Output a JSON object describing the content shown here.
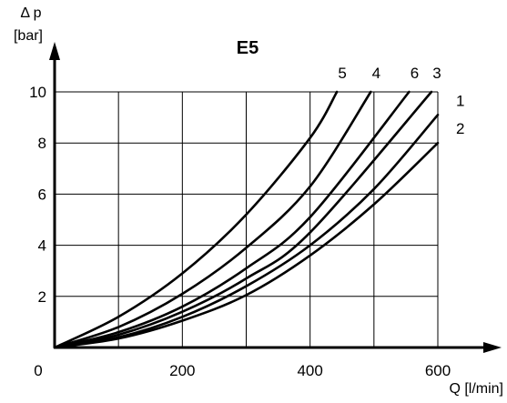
{
  "chart_data": {
    "type": "line",
    "title": "E5",
    "ylabel_line1": "Δ p",
    "ylabel_line2": "[bar]",
    "xlabel": "Q [l/min]",
    "xlim": [
      0,
      600
    ],
    "ylim": [
      0,
      10
    ],
    "x_ticks": [
      0,
      200,
      400,
      600
    ],
    "y_ticks": [
      2,
      4,
      6,
      8,
      10
    ],
    "x_grid": [
      100,
      200,
      300,
      400,
      500,
      600
    ],
    "y_grid": [
      2,
      4,
      6,
      8,
      10
    ],
    "grid": true,
    "series": [
      {
        "name": "5",
        "x": [
          0,
          100,
          200,
          300,
          400,
          442
        ],
        "y": [
          0,
          1.2,
          2.9,
          5.2,
          8.2,
          10
        ]
      },
      {
        "name": "4",
        "x": [
          0,
          100,
          200,
          300,
          400,
          495
        ],
        "y": [
          0,
          0.8,
          2.1,
          3.9,
          6.3,
          10
        ]
      },
      {
        "name": "6",
        "x": [
          0,
          100,
          200,
          300,
          400,
          555
        ],
        "y": [
          0,
          0.6,
          1.6,
          3.1,
          5.1,
          10
        ]
      },
      {
        "name": "3",
        "x": [
          0,
          100,
          200,
          300,
          400,
          590
        ],
        "y": [
          0,
          0.5,
          1.4,
          2.7,
          4.5,
          10
        ]
      },
      {
        "name": "1",
        "x": [
          0,
          100,
          200,
          300,
          400,
          500,
          600
        ],
        "y": [
          0,
          0.4,
          1.2,
          2.4,
          4.0,
          6.2,
          9.1
        ]
      },
      {
        "name": "2",
        "x": [
          0,
          100,
          200,
          300,
          400,
          500,
          600
        ],
        "y": [
          0,
          0.35,
          1.05,
          2.05,
          3.6,
          5.6,
          8.0
        ]
      }
    ]
  }
}
